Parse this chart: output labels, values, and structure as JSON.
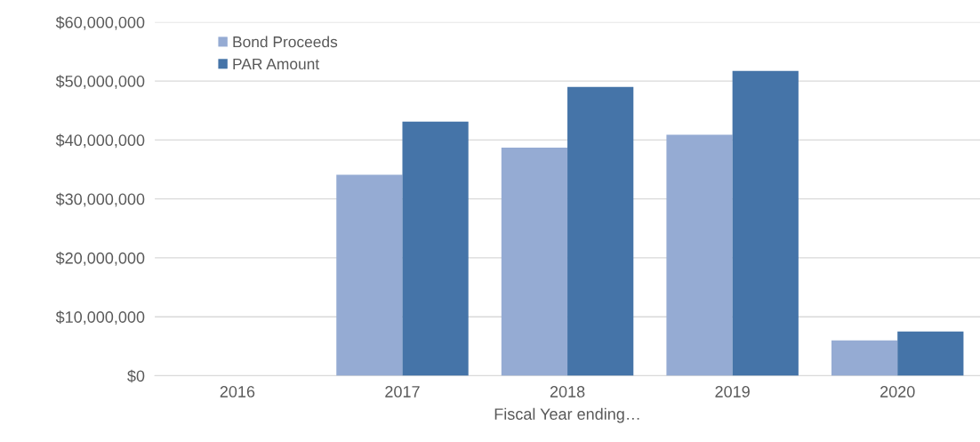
{
  "chart_data": {
    "type": "bar",
    "xlabel": "Fiscal Year ending…",
    "categories": [
      "2016",
      "2017",
      "2018",
      "2019",
      "2020"
    ],
    "series": [
      {
        "name": "Bond Proceeds",
        "color": "#95abd3",
        "values": [
          0,
          34100000,
          38700000,
          40900000,
          6000000
        ]
      },
      {
        "name": "PAR Amount",
        "color": "#4574a8",
        "values": [
          0,
          43100000,
          49000000,
          51700000,
          7500000
        ]
      }
    ],
    "ylim": [
      0,
      60000000
    ],
    "yticks": [
      {
        "value": 0,
        "label": "$0"
      },
      {
        "value": 10000000,
        "label": "$10,000,000"
      },
      {
        "value": 20000000,
        "label": "$20,000,000"
      },
      {
        "value": 30000000,
        "label": "$30,000,000"
      },
      {
        "value": 40000000,
        "label": "$40,000,000"
      },
      {
        "value": 50000000,
        "label": "$50,000,000"
      },
      {
        "value": 60000000,
        "label": "$60,000,000"
      }
    ],
    "grid": "y",
    "legend": "top left"
  }
}
